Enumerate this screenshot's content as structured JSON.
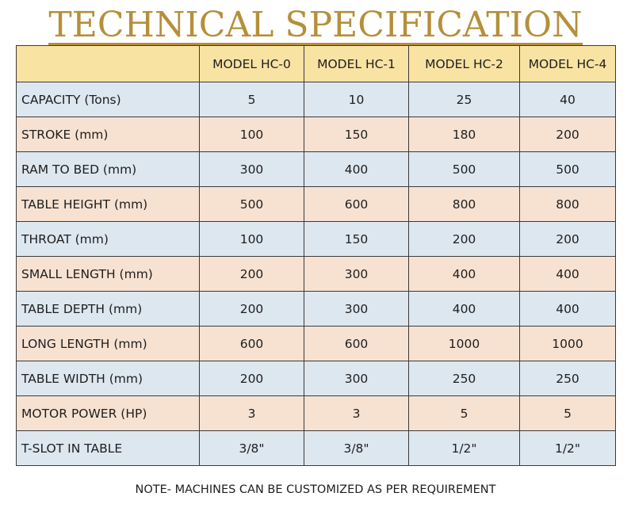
{
  "title": "TECHNICAL SPECIFICATION",
  "colors": {
    "title": "#b58f3a",
    "header_bg": "#f9e3a3",
    "row_blue": "#dde7f0",
    "row_peach": "#f7e2d2"
  },
  "table": {
    "header": [
      "",
      "MODEL HC-0",
      "MODEL HC-1",
      "MODEL HC-2",
      "MODEL HC-4"
    ],
    "rows": [
      {
        "label": "CAPACITY (Tons)",
        "values": [
          "5",
          "10",
          "25",
          "40"
        ]
      },
      {
        "label": "STROKE (mm)",
        "values": [
          "100",
          "150",
          "180",
          "200"
        ]
      },
      {
        "label": "RAM TO BED (mm)",
        "values": [
          "300",
          "400",
          "500",
          "500"
        ]
      },
      {
        "label": "TABLE HEIGHT (mm)",
        "values": [
          "500",
          "600",
          "800",
          "800"
        ]
      },
      {
        "label": "THROAT (mm)",
        "values": [
          "100",
          "150",
          "200",
          "200"
        ]
      },
      {
        "label": "SMALL LENGTH (mm)",
        "values": [
          "200",
          "300",
          "400",
          "400"
        ]
      },
      {
        "label": "TABLE DEPTH (mm)",
        "values": [
          "200",
          "300",
          "400",
          "400"
        ]
      },
      {
        "label": "LONG LENGTH (mm)",
        "values": [
          "600",
          "600",
          "1000",
          "1000"
        ]
      },
      {
        "label": "TABLE WIDTH (mm)",
        "values": [
          "200",
          "300",
          "250",
          "250"
        ]
      },
      {
        "label": "MOTOR POWER (HP)",
        "values": [
          "3",
          "3",
          "5",
          "5"
        ]
      },
      {
        "label": "T-SLOT IN TABLE",
        "values": [
          "3/8\"",
          "3/8\"",
          "1/2\"",
          "1/2\""
        ]
      }
    ]
  },
  "note": "NOTE- MACHINES CAN BE CUSTOMIZED AS PER REQUIREMENT"
}
